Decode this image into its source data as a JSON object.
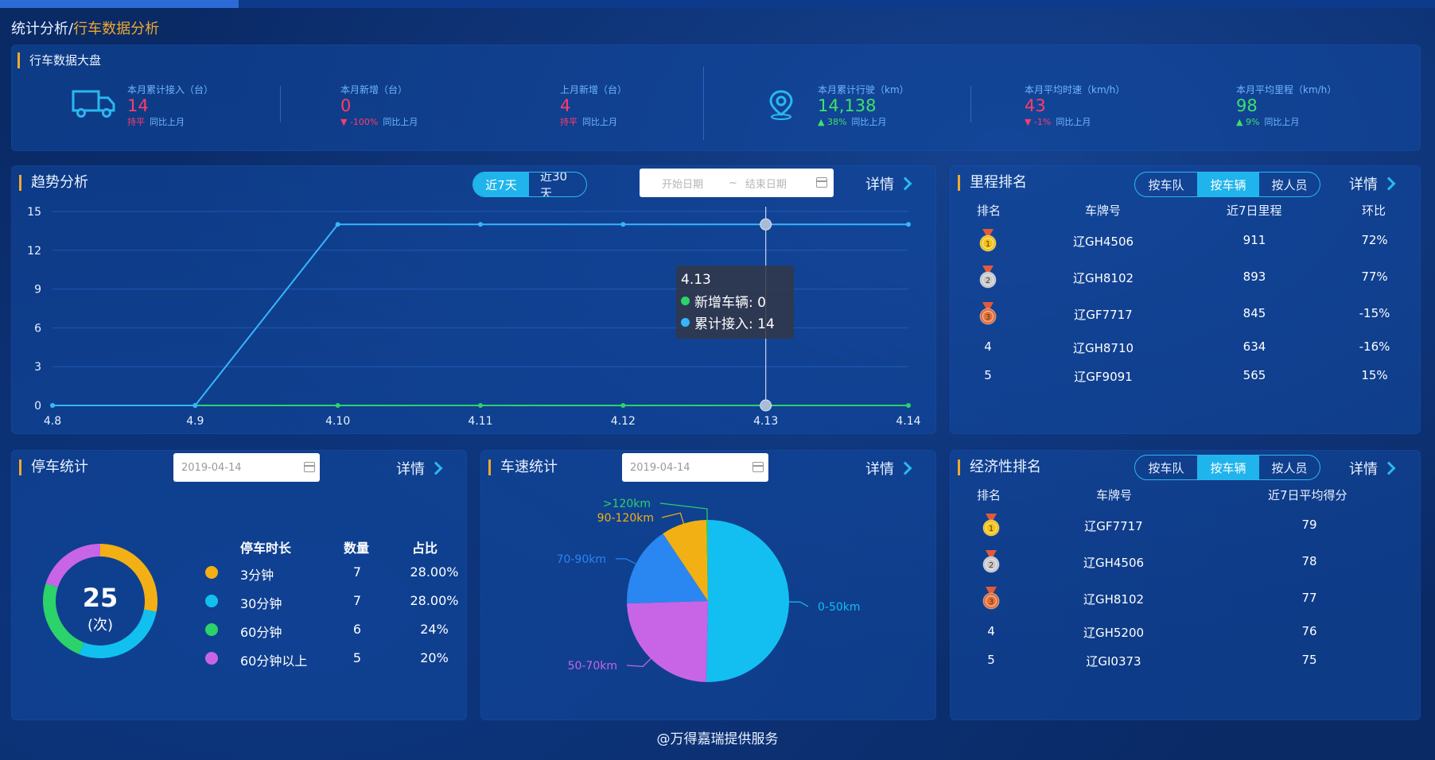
{
  "breadcrumb": {
    "parent": "统计分析",
    "sep": "/",
    "current": "行车数据分析"
  },
  "overview": {
    "title": "行车数据大盘",
    "compare_label": "同比上月",
    "kpis": [
      {
        "label": "本月累计接入（台）",
        "value": "14",
        "change": "持平",
        "color": "#ff3b6b",
        "icon": "truck-icon"
      },
      {
        "label": "本月新增（台）",
        "value": "0",
        "change": "▼ -100%",
        "color": "#ff3b6b"
      },
      {
        "label": "上月新增（台）",
        "value": "4",
        "change": "持平",
        "color": "#ff3b6b"
      },
      {
        "label": "本月累计行驶（km）",
        "value": "14,138",
        "change": "▲ 38%",
        "color": "#3ee06b",
        "icon": "location-pin-icon"
      },
      {
        "label": "本月平均时速（km/h）",
        "value": "43",
        "change": "▼ -1%",
        "color": "#ff3b6b"
      },
      {
        "label": "本月平均里程（km/h）",
        "value": "98",
        "change": "▲ 9%",
        "color": "#3ee06b"
      }
    ]
  },
  "trend": {
    "title": "趋势分析",
    "tabs": [
      "近7天",
      "近30天"
    ],
    "active_tab": "近7天",
    "start_placeholder": "开始日期",
    "range_sep": "~",
    "end_placeholder": "结束日期",
    "detail": "详情",
    "tooltip": {
      "title": "4.13",
      "lines": [
        "新增车辆: 0",
        "累计接入: 14"
      ]
    }
  },
  "chart_data": {
    "type": "line",
    "x": [
      "4.8",
      "4.9",
      "4.10",
      "4.11",
      "4.12",
      "4.13",
      "4.14"
    ],
    "yticks": [
      0,
      3,
      6,
      9,
      12,
      15
    ],
    "ylim": [
      0,
      15
    ],
    "grid": true,
    "series": [
      {
        "name": "新增车辆",
        "color": "#2bd36a",
        "values": [
          0,
          0,
          0,
          0,
          0,
          0,
          0
        ]
      },
      {
        "name": "累计接入",
        "color": "#36b6ff",
        "values": [
          0,
          0,
          14,
          14,
          14,
          14,
          14
        ]
      }
    ]
  },
  "mileage_rank": {
    "title": "里程排名",
    "tabs": [
      "按车队",
      "按车辆",
      "按人员"
    ],
    "active_tab": "按车辆",
    "detail": "详情",
    "headers": [
      "排名",
      "车牌号",
      "近7日里程",
      "环比"
    ],
    "rows": [
      {
        "rank": "1",
        "plate": "辽GH4506",
        "value": "911",
        "ratio": "72%"
      },
      {
        "rank": "2",
        "plate": "辽GH8102",
        "value": "893",
        "ratio": "77%"
      },
      {
        "rank": "3",
        "plate": "辽GF7717",
        "value": "845",
        "ratio": "-15%"
      },
      {
        "rank": "4",
        "plate": "辽GH8710",
        "value": "634",
        "ratio": "-16%"
      },
      {
        "rank": "5",
        "plate": "辽GF9091",
        "value": "565",
        "ratio": "15%"
      }
    ]
  },
  "parking": {
    "title": "停车统计",
    "date": "2019-04-14",
    "detail": "详情",
    "total": "25",
    "unit": "(次)",
    "headers": [
      "停车时长",
      "数量",
      "占比"
    ],
    "rows": [
      {
        "label": "3分钟",
        "count": "7",
        "pct": "28.00%",
        "color": "#f3b014",
        "value": 7
      },
      {
        "label": "30分钟",
        "count": "7",
        "pct": "28.00%",
        "color": "#12c0f0",
        "value": 7
      },
      {
        "label": "60分钟",
        "count": "6",
        "pct": "24%",
        "color": "#2bd36a",
        "value": 6
      },
      {
        "label": "60分钟以上",
        "count": "5",
        "pct": "20%",
        "color": "#c865e6",
        "value": 5
      }
    ]
  },
  "speed": {
    "title": "车速统计",
    "date": "2019-04-14",
    "detail": "详情",
    "slices": [
      {
        "label": "0-50km",
        "value": 50,
        "color": "#12bff0"
      },
      {
        "label": "50-70km",
        "value": 24,
        "color": "#c865e6"
      },
      {
        "label": "70-90km",
        "value": 16,
        "color": "#2a86f0"
      },
      {
        "label": "90-120km",
        "value": 9,
        "color": "#f3b014"
      },
      {
        "label": ">120km",
        "value": 0.3,
        "color": "#2bd36a"
      }
    ]
  },
  "economy_rank": {
    "title": "经济性排名",
    "tabs": [
      "按车队",
      "按车辆",
      "按人员"
    ],
    "active_tab": "按车辆",
    "detail": "详情",
    "headers": [
      "排名",
      "车牌号",
      "近7日平均得分"
    ],
    "rows": [
      {
        "rank": "1",
        "plate": "辽GF7717",
        "value": "79"
      },
      {
        "rank": "2",
        "plate": "辽GH4506",
        "value": "78"
      },
      {
        "rank": "3",
        "plate": "辽GH8102",
        "value": "77"
      },
      {
        "rank": "4",
        "plate": "辽GH5200",
        "value": "76"
      },
      {
        "rank": "5",
        "plate": "辽GI0373",
        "value": "75"
      }
    ]
  },
  "footer": "@万得嘉瑞提供服务",
  "colors": {
    "accent": "#f0a830",
    "active_tab": "#1fb4ec",
    "gold": "#f3c21a",
    "silver": "#c7c9cf",
    "bronze": "#e2703c"
  }
}
